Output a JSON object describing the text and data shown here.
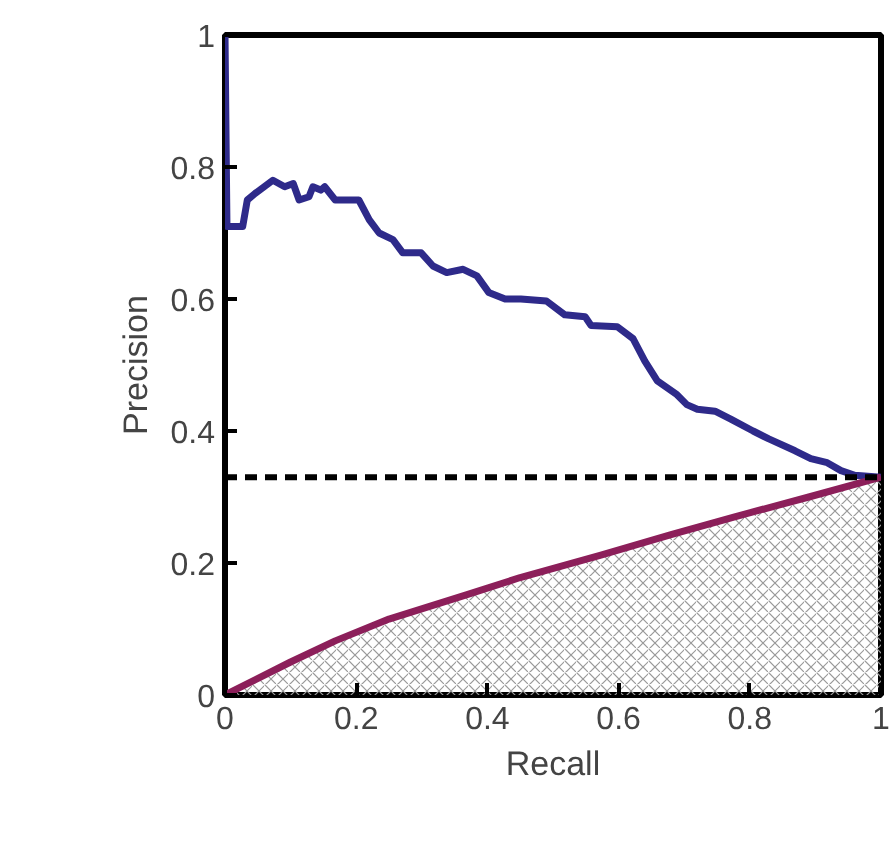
{
  "chart_data": {
    "type": "line",
    "xlabel": "Recall",
    "ylabel": "Precision",
    "xlim": [
      0,
      1
    ],
    "ylim": [
      0,
      1
    ],
    "xticks": [
      0,
      0.2,
      0.4,
      0.6,
      0.8,
      1
    ],
    "yticks": [
      0,
      0.2,
      0.4,
      0.6,
      0.8,
      1
    ],
    "grid": false,
    "marker": "none",
    "line_style": "solid",
    "series": [
      {
        "color": "#2e2a8a",
        "x": [
          0,
          0.003,
          0.027,
          0.034,
          0.046,
          0.073,
          0.091,
          0.104,
          0.113,
          0.128,
          0.134,
          0.146,
          0.152,
          0.168,
          0.183,
          0.204,
          0.22,
          0.235,
          0.256,
          0.271,
          0.299,
          0.317,
          0.338,
          0.363,
          0.384,
          0.402,
          0.427,
          0.451,
          0.49,
          0.518,
          0.549,
          0.558,
          0.598,
          0.622,
          0.64,
          0.659,
          0.689,
          0.704,
          0.72,
          0.747,
          0.771,
          0.805,
          0.829,
          0.869,
          0.893,
          0.918,
          0.939,
          0.96,
          1.0
        ],
        "values": [
          1.0,
          0.71,
          0.71,
          0.75,
          0.76,
          0.78,
          0.77,
          0.775,
          0.75,
          0.755,
          0.77,
          0.765,
          0.77,
          0.75,
          0.75,
          0.75,
          0.72,
          0.7,
          0.69,
          0.67,
          0.67,
          0.65,
          0.64,
          0.645,
          0.635,
          0.61,
          0.6,
          0.6,
          0.597,
          0.576,
          0.573,
          0.56,
          0.558,
          0.54,
          0.506,
          0.476,
          0.455,
          0.44,
          0.433,
          0.43,
          0.418,
          0.4,
          0.388,
          0.37,
          0.358,
          0.352,
          0.34,
          0.333,
          0.33
        ]
      },
      {
        "type": "area",
        "color": "#8c1f5a",
        "x": [
          0,
          0.1,
          0.168,
          0.25,
          0.369,
          0.45,
          0.573,
          0.68,
          0.777,
          0.89,
          1.0
        ],
        "values": [
          0,
          0.05,
          0.082,
          0.115,
          0.152,
          0.178,
          0.212,
          0.243,
          0.27,
          0.3,
          0.33
        ]
      }
    ],
    "ref_lines": [
      {
        "axis": "y",
        "value": 0.33,
        "color": "#000000",
        "line_style": "dashed"
      }
    ]
  }
}
